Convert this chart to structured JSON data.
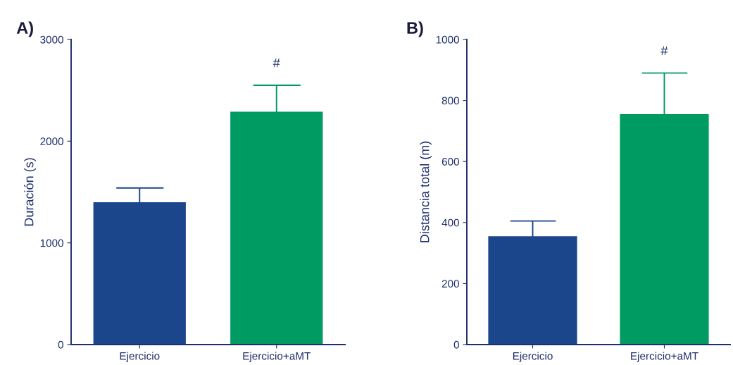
{
  "chart_data": [
    {
      "type": "bar",
      "title": "A)",
      "ylabel": "Duración (s)",
      "categories": [
        "Ejercicio",
        "Ejercicio+aMT"
      ],
      "values": [
        1400,
        2290
      ],
      "colors": [
        "#1b468b",
        "#009b62"
      ],
      "errors": [
        [
          1400,
          1540
        ],
        [
          2290,
          2550
        ]
      ],
      "ylim": [
        0,
        3000
      ],
      "yticks": [
        0,
        1000,
        2000,
        3000
      ],
      "grid": false,
      "legend": false,
      "annotations": [
        "#"
      ]
    },
    {
      "type": "bar",
      "title": "B)",
      "ylabel": "Distancia total (m)",
      "categories": [
        "Ejercicio",
        "Ejercicio+aMT"
      ],
      "values": [
        355,
        755
      ],
      "colors": [
        "#1b468b",
        "#009b62"
      ],
      "errors": [
        [
          355,
          405
        ],
        [
          755,
          890
        ]
      ],
      "ylim": [
        0,
        1000
      ],
      "yticks": [
        0,
        200,
        400,
        600,
        800,
        1000
      ],
      "grid": false,
      "legend": false,
      "annotations": [
        "#"
      ]
    }
  ]
}
